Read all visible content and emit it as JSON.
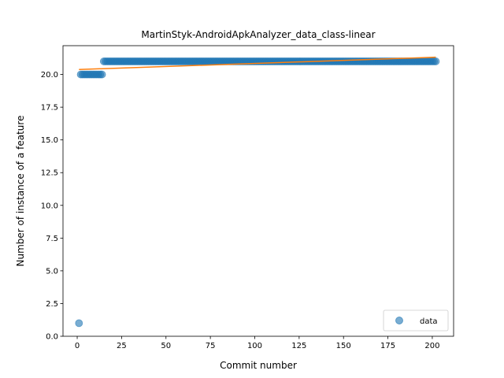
{
  "chart_data": {
    "type": "scatter",
    "title": "MartinStyk-AndroidApkAnalyzer_data_class-linear",
    "xlabel": "Commit number",
    "ylabel": "Number of instance of a feature",
    "xlim": [
      -8,
      212
    ],
    "ylim": [
      0,
      22.2
    ],
    "x_ticks": [
      0,
      25,
      50,
      75,
      100,
      125,
      150,
      175,
      200
    ],
    "x_tick_labels": [
      "0",
      "25",
      "50",
      "75",
      "100",
      "125",
      "150",
      "175",
      "200"
    ],
    "y_ticks": [
      0,
      2.5,
      5,
      7.5,
      10,
      12.5,
      15,
      17.5,
      20
    ],
    "y_tick_labels": [
      "0.0",
      "2.5",
      "5.0",
      "7.5",
      "10.0",
      "12.5",
      "15.0",
      "17.5",
      "20.0"
    ],
    "grid": false,
    "legend_position": "lower-right",
    "series": [
      {
        "name": "data",
        "kind": "scatter",
        "color": "#1f77b4",
        "segments": [
          {
            "x_start": 1,
            "x_end": 1,
            "y": 1
          },
          {
            "x_start": 2,
            "x_end": 14,
            "y": 20
          },
          {
            "x_start": 15,
            "x_end": 202,
            "y": 21
          }
        ]
      },
      {
        "kind": "line",
        "color": "#ff7f0e",
        "x": [
          1,
          202
        ],
        "y": [
          20.38,
          21.32
        ]
      }
    ]
  }
}
